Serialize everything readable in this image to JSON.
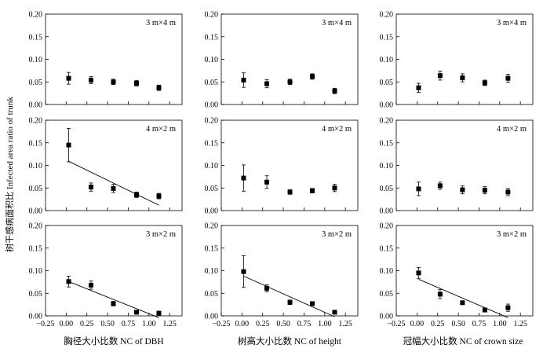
{
  "figure": {
    "ylabel": "树干感病面积比  Infected area ratio of trunk",
    "xlabels": [
      "胸径大小比数  NC of DBH",
      "树高大小比数  NC of height",
      "冠幅大小比数  NC of crown size"
    ],
    "row_labels": [
      "3 m×4 m",
      "4 m×2 m",
      "3 m×2 m"
    ],
    "y_ticks": [
      "0.00",
      "0.05",
      "0.10",
      "0.15",
      "0.20"
    ],
    "x_ticks": [
      "−0.25",
      "0.00",
      "0.25",
      "0.50",
      "0.75",
      "1.00",
      "1.25"
    ]
  },
  "chart_data": [
    {
      "type": "scatter",
      "panel": "DBH / 3 m×4 m",
      "label": "3 m×4 m",
      "xlim": [
        -0.25,
        1.4
      ],
      "ylim": [
        0,
        0.2
      ],
      "x": [
        0.03,
        0.3,
        0.57,
        0.85,
        1.12
      ],
      "y": [
        0.058,
        0.054,
        0.05,
        0.047,
        0.037
      ],
      "err": [
        0.013,
        0.008,
        0.006,
        0.006,
        0.006
      ],
      "fit": null
    },
    {
      "type": "scatter",
      "panel": "Height / 3 m×4 m",
      "label": "3 m×4 m",
      "xlim": [
        -0.25,
        1.4
      ],
      "ylim": [
        0,
        0.2
      ],
      "x": [
        0.02,
        0.3,
        0.58,
        0.85,
        1.12
      ],
      "y": [
        0.054,
        0.046,
        0.05,
        0.062,
        0.03
      ],
      "err": [
        0.016,
        0.009,
        0.006,
        0.006,
        0.006
      ],
      "fit": null
    },
    {
      "type": "scatter",
      "panel": "Crown / 3 m×4 m",
      "label": "3 m×4 m",
      "xlim": [
        -0.25,
        1.4
      ],
      "ylim": [
        0,
        0.2
      ],
      "x": [
        0.02,
        0.28,
        0.55,
        0.82,
        1.1
      ],
      "y": [
        0.037,
        0.064,
        0.059,
        0.048,
        0.058
      ],
      "err": [
        0.01,
        0.01,
        0.009,
        0.006,
        0.009
      ],
      "fit": null
    },
    {
      "type": "scatter",
      "panel": "DBH / 4 m×2 m",
      "label": "4 m×2 m",
      "xlim": [
        -0.25,
        1.4
      ],
      "ylim": [
        0,
        0.2
      ],
      "x": [
        0.03,
        0.3,
        0.57,
        0.85,
        1.12
      ],
      "y": [
        0.145,
        0.052,
        0.049,
        0.035,
        0.032
      ],
      "err": [
        0.037,
        0.009,
        0.009,
        0.006,
        0.006
      ],
      "fit": [
        [
          0.03,
          0.109
        ],
        [
          1.12,
          0.012
        ]
      ]
    },
    {
      "type": "scatter",
      "panel": "Height / 4 m×2 m",
      "label": "4 m×2 m",
      "xlim": [
        -0.25,
        1.4
      ],
      "ylim": [
        0,
        0.2
      ],
      "x": [
        0.02,
        0.3,
        0.58,
        0.85,
        1.12
      ],
      "y": [
        0.072,
        0.063,
        0.041,
        0.044,
        0.05
      ],
      "err": [
        0.029,
        0.014,
        0.005,
        0.005,
        0.008
      ],
      "fit": null
    },
    {
      "type": "scatter",
      "panel": "Crown / 4 m×2 m",
      "label": "4 m×2 m",
      "xlim": [
        -0.25,
        1.4
      ],
      "ylim": [
        0,
        0.2
      ],
      "x": [
        0.02,
        0.28,
        0.55,
        0.82,
        1.1
      ],
      "y": [
        0.048,
        0.055,
        0.046,
        0.045,
        0.041
      ],
      "err": [
        0.015,
        0.008,
        0.009,
        0.008,
        0.008
      ],
      "fit": null
    },
    {
      "type": "scatter",
      "panel": "DBH / 3 m×2 m",
      "label": "3 m×2 m",
      "xlim": [
        -0.25,
        1.4
      ],
      "ylim": [
        0,
        0.2
      ],
      "x": [
        0.03,
        0.3,
        0.57,
        0.85,
        1.12
      ],
      "y": [
        0.076,
        0.068,
        0.027,
        0.008,
        0.006
      ],
      "err": [
        0.012,
        0.009,
        0.005,
        0.002,
        0.002
      ],
      "fit": [
        [
          0.03,
          0.076
        ],
        [
          1.12,
          -0.004
        ]
      ]
    },
    {
      "type": "scatter",
      "panel": "Height / 3 m×2 m",
      "label": "3 m×2 m",
      "xlim": [
        -0.25,
        1.4
      ],
      "ylim": [
        0,
        0.2
      ],
      "x": [
        0.02,
        0.3,
        0.58,
        0.85,
        1.12
      ],
      "y": [
        0.098,
        0.061,
        0.03,
        0.027,
        0.008
      ],
      "err": [
        0.035,
        0.008,
        0.005,
        0.004,
        0.002
      ],
      "fit": [
        [
          0.02,
          0.088
        ],
        [
          1.12,
          -0.002
        ]
      ]
    },
    {
      "type": "scatter",
      "panel": "Crown / 3 m×2 m",
      "label": "3 m×2 m",
      "xlim": [
        -0.25,
        1.4
      ],
      "ylim": [
        0,
        0.2
      ],
      "x": [
        0.02,
        0.28,
        0.55,
        0.82,
        1.1
      ],
      "y": [
        0.095,
        0.048,
        0.029,
        0.013,
        0.018
      ],
      "err": [
        0.012,
        0.01,
        0.003,
        0.002,
        0.008
      ],
      "fit": [
        [
          0.02,
          0.081
        ],
        [
          1.1,
          -0.004
        ]
      ]
    }
  ]
}
